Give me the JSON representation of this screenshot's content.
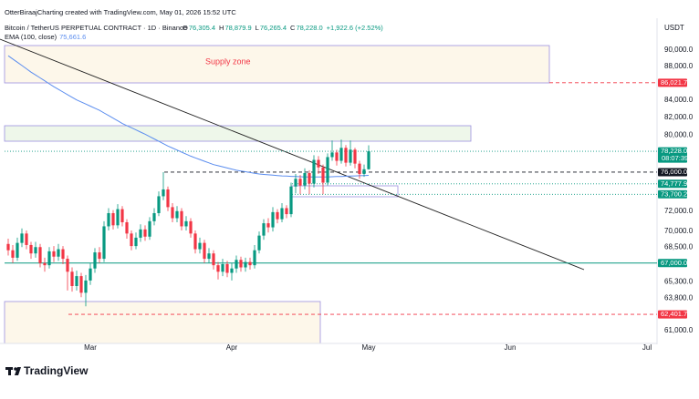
{
  "header": {
    "attribution": "OtterBiraajCharting created with TradingView.com, May 01, 2026 15:52 UTC",
    "currency": "USDT"
  },
  "chart_data": {
    "type": "candlestick",
    "title": "Bitcoin / TetherUS PERPETUAL CONTRACT · 1D · Binance",
    "ohlc_legend": [
      {
        "label": "O",
        "value": "76,305.4"
      },
      {
        "label": "H",
        "value": "78,879.9"
      },
      {
        "label": "L",
        "value": "76,265.4"
      },
      {
        "label": "C",
        "value": "78,228.0"
      }
    ],
    "change": "+1,922.6 (+2.52%)",
    "open": [
      68800,
      68200,
      67500,
      68900,
      69800,
      68700,
      67900,
      68500,
      67000,
      66800,
      68100,
      67600,
      68300,
      67400,
      66200,
      64900,
      65800,
      64300,
      65400,
      66500,
      68000,
      67400,
      70500,
      71800,
      70600,
      72200,
      70900,
      69800,
      68600,
      69400,
      70200,
      69500,
      71000,
      71800,
      73500,
      74200,
      72400,
      71300,
      72000,
      70500,
      71000,
      69800,
      68300,
      68900,
      67400,
      67900,
      66800,
      66200,
      66900,
      66100,
      66500,
      67300,
      66600,
      67100,
      66800,
      68200,
      69600,
      70800,
      70400,
      71900,
      71200,
      72300,
      71700,
      74500,
      75300,
      74600,
      75900,
      74800,
      77300,
      76500,
      74900,
      77600,
      78100,
      77200,
      78600,
      77000,
      78400,
      76900,
      75800,
      76305.4
    ],
    "high": [
      69300,
      68700,
      69400,
      70300,
      70100,
      69000,
      69000,
      68800,
      67500,
      68500,
      68600,
      68800,
      68600,
      67700,
      66600,
      66300,
      66100,
      65900,
      67000,
      68400,
      68500,
      71000,
      72300,
      72100,
      72700,
      72500,
      71200,
      70100,
      69900,
      70700,
      70600,
      71400,
      72300,
      74000,
      76000,
      74500,
      72800,
      72500,
      72300,
      71500,
      71300,
      70100,
      69400,
      69200,
      68400,
      68200,
      67100,
      67400,
      67200,
      67000,
      67700,
      67600,
      67500,
      67500,
      68700,
      70000,
      71200,
      71300,
      72400,
      72200,
      72800,
      72600,
      74900,
      75800,
      75700,
      76400,
      76200,
      77800,
      77700,
      76800,
      78000,
      79400,
      78400,
      79500,
      78900,
      79400,
      78600,
      77200,
      76800,
      78879.9
    ],
    "low": [
      67700,
      67000,
      67200,
      68500,
      68300,
      67400,
      67500,
      66600,
      66200,
      66500,
      67100,
      67200,
      66900,
      64500,
      64400,
      64500,
      63900,
      63100,
      65000,
      66100,
      67000,
      67100,
      70100,
      70200,
      70300,
      70500,
      69300,
      68200,
      68300,
      69000,
      69100,
      69200,
      70600,
      71500,
      73100,
      72000,
      70900,
      70900,
      70100,
      70100,
      69400,
      67900,
      67900,
      67000,
      67000,
      66400,
      65500,
      65800,
      65700,
      65400,
      66100,
      66200,
      66200,
      66400,
      66500,
      67900,
      69200,
      69900,
      70000,
      70800,
      70900,
      71300,
      71400,
      73800,
      73700,
      74200,
      73700,
      74400,
      75800,
      73700,
      74600,
      77200,
      76700,
      76900,
      76600,
      76700,
      76400,
      75300,
      75500,
      76265.4
    ],
    "close": [
      68200,
      67500,
      68900,
      69800,
      68700,
      67900,
      68500,
      67000,
      66800,
      68100,
      67600,
      68300,
      67400,
      66200,
      64900,
      65800,
      64300,
      65400,
      66500,
      68000,
      67400,
      70500,
      71800,
      70600,
      72200,
      70900,
      69800,
      68600,
      69400,
      70200,
      69500,
      71000,
      71800,
      73500,
      74200,
      72400,
      71300,
      72000,
      70500,
      71000,
      69800,
      68300,
      68900,
      67400,
      67900,
      66800,
      66200,
      66900,
      66100,
      66500,
      67300,
      66600,
      67100,
      66800,
      68200,
      69600,
      70800,
      70400,
      71900,
      71200,
      72300,
      71700,
      74500,
      75300,
      74600,
      75900,
      74800,
      77300,
      76500,
      74900,
      77600,
      78100,
      77200,
      78600,
      77000,
      78400,
      76900,
      75800,
      76300,
      78228.0
    ],
    "up_color": "#089981",
    "down_color": "#f23645",
    "indicator": {
      "name": "EMA (100, close)",
      "value_label": "75,661.6",
      "color": "#5b8def",
      "values": [
        89300,
        88900,
        88500,
        88100,
        87700,
        87300,
        86950,
        86600,
        86250,
        85900,
        85550,
        85240,
        84930,
        84620,
        84310,
        84000,
        83760,
        83520,
        83280,
        83040,
        82800,
        82500,
        82200,
        81900,
        81600,
        81300,
        81060,
        80820,
        80580,
        80340,
        80100,
        79840,
        79580,
        79320,
        79060,
        78800,
        78580,
        78360,
        78140,
        77920,
        77700,
        77520,
        77340,
        77160,
        76980,
        76800,
        76680,
        76560,
        76440,
        76320,
        76200,
        76120,
        76040,
        75960,
        75880,
        75800,
        75760,
        75720,
        75680,
        75640,
        75600,
        75580,
        75560,
        75540,
        75520,
        75500,
        75500,
        75500,
        75500,
        75500,
        75500,
        75516,
        75532,
        75548,
        75564,
        75580,
        75600,
        75620,
        75640,
        75661.6
      ]
    },
    "log_scale": true,
    "xlim": [
      -1.8,
      142.2
    ],
    "xticks": [
      {
        "value": 18,
        "label": "Mar"
      },
      {
        "value": 49,
        "label": "Apr"
      },
      {
        "value": 79,
        "label": "May"
      },
      {
        "value": 110,
        "label": "Jun"
      },
      {
        "value": 140,
        "label": "Jul"
      }
    ],
    "ylim": [
      60090,
      94070
    ],
    "yticks": [
      {
        "value": 61000,
        "label": "61,000.0"
      },
      {
        "value": 63800,
        "label": "63,800.0"
      },
      {
        "value": 65300,
        "label": "65,300.0"
      },
      {
        "value": 68500,
        "label": "68,500.0"
      },
      {
        "value": 70000,
        "label": "70,000.0"
      },
      {
        "value": 72000,
        "label": "72,000.0"
      },
      {
        "value": 80000,
        "label": "80,000.0"
      },
      {
        "value": 82000,
        "label": "82,000.0"
      },
      {
        "value": 84000,
        "label": "84,000.0"
      },
      {
        "value": 88000,
        "label": "88,000.0"
      },
      {
        "value": 90000,
        "label": "90,000.0"
      }
    ],
    "levels": [
      {
        "value": 86021.7,
        "label": "86,021.7",
        "color": "#f23645",
        "style": "dashed"
      },
      {
        "value": 78228.0,
        "label": "78,228.0",
        "countdown": "08:07:39",
        "color": "#089981",
        "style": "dotted"
      },
      {
        "value": 76000,
        "label": "76,000.0",
        "color": "#131722",
        "style": "dashed"
      },
      {
        "value": 74777.9,
        "label": "74,777.9",
        "color": "#089981",
        "style": "dotted"
      },
      {
        "value": 73700.2,
        "label": "73,700.2",
        "color": "#089981",
        "style": "dotted"
      },
      {
        "value": 67000,
        "label": "67,000.0",
        "color": "#089981",
        "style": "solid"
      },
      {
        "value": 62401.7,
        "label": "62,401.7",
        "color": "#f23645",
        "style": "dashed"
      }
    ],
    "annotation": "Supply zone"
  },
  "footer": {
    "logo": "TradingView"
  }
}
